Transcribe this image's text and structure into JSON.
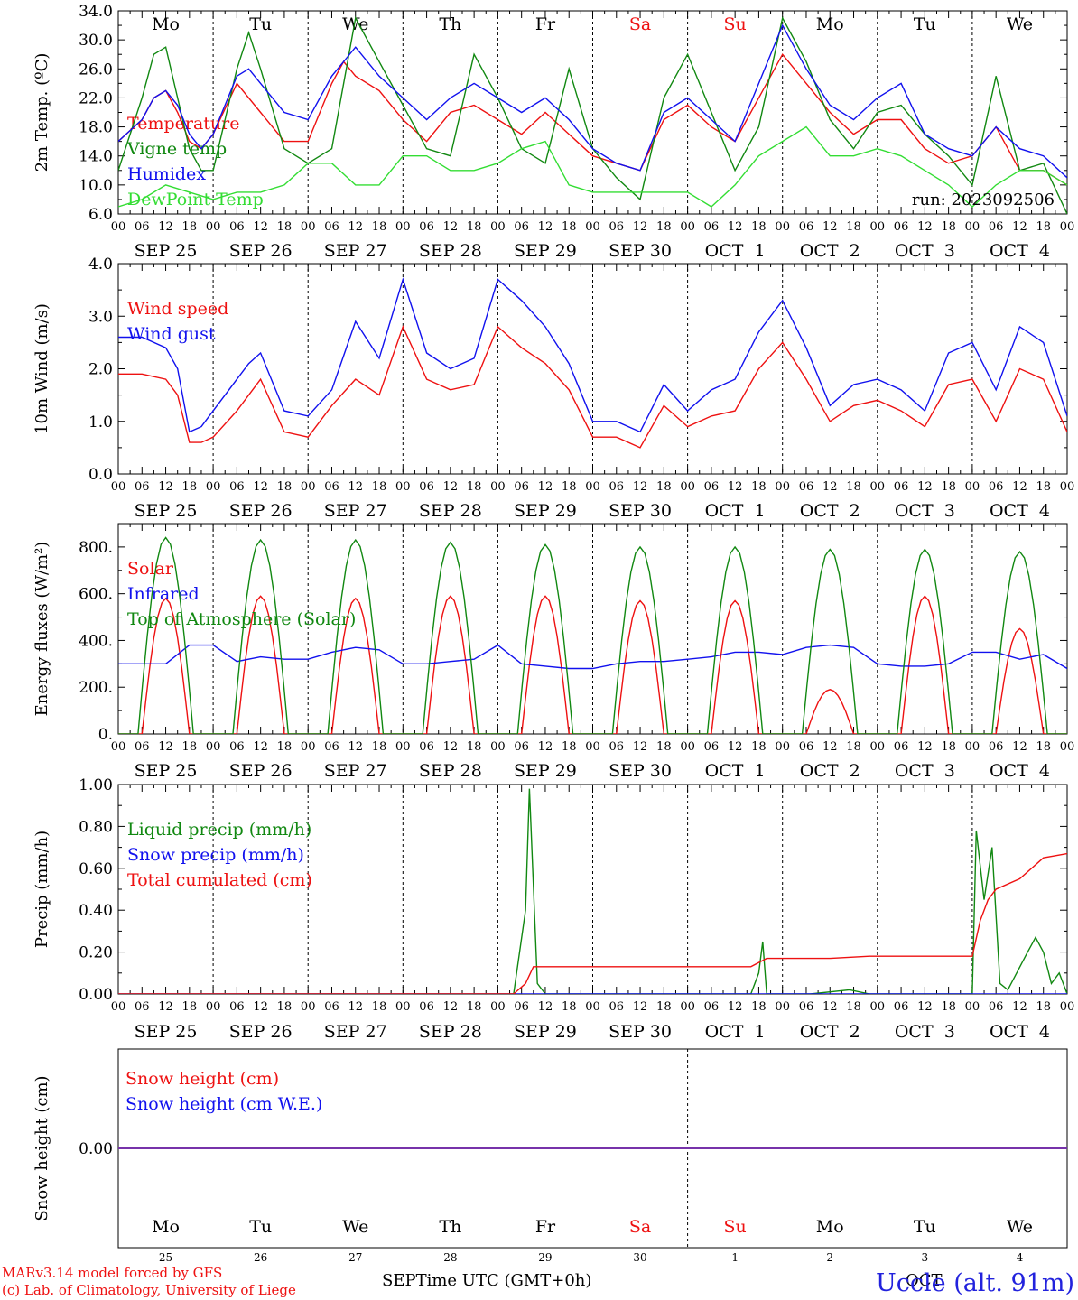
{
  "figure": {
    "run_label": "run: 2023092506",
    "xlabel": "Time UTC (GMT+0h)",
    "xlabel_month_overlay_left": "SEP",
    "xlabel_month_overlay_right": "OCT",
    "credit_line1": "MARv3.14 model forced by GFS",
    "credit_line2": "(c) Lab. of Climatology, University of Liege",
    "location": "Uccle (alt. 91m)"
  },
  "time_axis": {
    "hour_ticks": [
      "00",
      "06",
      "12",
      "18"
    ],
    "final_tick": "00",
    "date_labels": [
      "SEP 25",
      "SEP 26",
      "SEP 27",
      "SEP 28",
      "SEP 29",
      "SEP 30",
      "OCT  1",
      "OCT  2",
      "OCT  3",
      "OCT  4"
    ],
    "weekdays": [
      "Mo",
      "Tu",
      "We",
      "Th",
      "Fr",
      "Sa",
      "Su",
      "Mo",
      "Tu",
      "We"
    ],
    "weekend_indices": [
      5,
      6
    ],
    "day_numbers": [
      "25",
      "26",
      "27",
      "28",
      "29",
      "30",
      "1",
      "2",
      "3",
      "4"
    ]
  },
  "colors": {
    "red": "#ee1111",
    "blue": "#1111ee",
    "dark_green": "#118811",
    "light_green": "#33dd33",
    "purple": "#7733aa"
  },
  "chart_data": [
    {
      "type": "line",
      "ylabel": "2m Temp. (ºC)",
      "ylim": [
        6,
        34
      ],
      "yticks": [
        "6.0",
        "10.0",
        "14.0",
        "18.0",
        "22.0",
        "26.0",
        "30.0",
        "34.0"
      ],
      "x_unit": "hours since SEP 25 00 UTC",
      "series": [
        {
          "name": "Temperature",
          "color": "red",
          "x": [
            0,
            6,
            9,
            12,
            15,
            18,
            21,
            24,
            30,
            36,
            42,
            48,
            54,
            57,
            60,
            66,
            72,
            78,
            84,
            90,
            96,
            102,
            108,
            114,
            120,
            126,
            132,
            138,
            144,
            150,
            156,
            162,
            168,
            174,
            180,
            186,
            192,
            198,
            204,
            210,
            216,
            222,
            228,
            234,
            240
          ],
          "y": [
            16,
            19,
            22,
            23,
            20,
            16,
            15,
            17,
            24,
            20,
            16,
            16,
            24,
            27,
            25,
            23,
            19,
            16,
            20,
            21,
            19,
            17,
            20,
            17,
            14,
            13,
            12,
            19,
            21,
            18,
            16,
            22,
            28,
            24,
            20,
            17,
            19,
            19,
            15,
            13,
            14,
            18,
            12,
            12,
            10
          ]
        },
        {
          "name": "Vigne temp",
          "color": "dark_green",
          "x": [
            0,
            6,
            9,
            12,
            15,
            18,
            21,
            24,
            30,
            33,
            36,
            42,
            48,
            54,
            60,
            66,
            72,
            78,
            84,
            90,
            96,
            102,
            108,
            114,
            120,
            126,
            132,
            138,
            144,
            150,
            156,
            162,
            168,
            174,
            180,
            186,
            192,
            198,
            204,
            210,
            216,
            222,
            228,
            234,
            240
          ],
          "y": [
            12,
            22,
            28,
            29,
            22,
            15,
            12,
            12,
            26,
            31,
            26,
            15,
            13,
            15,
            33,
            27,
            21,
            15,
            14,
            28,
            22,
            15,
            13,
            26,
            15,
            11,
            8,
            22,
            28,
            20,
            12,
            18,
            33,
            27,
            19,
            15,
            20,
            21,
            17,
            14,
            10,
            25,
            12,
            13,
            6
          ]
        },
        {
          "name": "Humidex",
          "color": "blue",
          "x": [
            0,
            6,
            9,
            12,
            15,
            18,
            21,
            24,
            30,
            33,
            36,
            42,
            48,
            54,
            60,
            66,
            72,
            78,
            84,
            90,
            96,
            102,
            108,
            114,
            120,
            126,
            132,
            138,
            144,
            150,
            156,
            162,
            168,
            174,
            180,
            186,
            192,
            198,
            204,
            210,
            216,
            222,
            228,
            234,
            240
          ],
          "y": [
            16,
            19,
            22,
            23,
            21,
            17,
            15,
            17,
            25,
            26,
            24,
            20,
            19,
            25,
            29,
            25,
            22,
            19,
            22,
            24,
            22,
            20,
            22,
            19,
            15,
            13,
            12,
            20,
            22,
            19,
            16,
            24,
            32,
            26,
            21,
            19,
            22,
            24,
            17,
            15,
            14,
            18,
            15,
            14,
            11
          ]
        },
        {
          "name": "DewPoint Temp",
          "color": "light_green",
          "x": [
            0,
            6,
            12,
            18,
            24,
            30,
            36,
            42,
            48,
            54,
            60,
            66,
            72,
            78,
            84,
            90,
            96,
            102,
            108,
            114,
            120,
            126,
            132,
            138,
            144,
            150,
            156,
            162,
            168,
            174,
            180,
            186,
            192,
            198,
            204,
            210,
            216,
            222,
            228,
            234,
            240
          ],
          "y": [
            7,
            8,
            10,
            9,
            8,
            9,
            9,
            10,
            13,
            13,
            10,
            10,
            14,
            14,
            12,
            12,
            13,
            15,
            16,
            10,
            9,
            9,
            9,
            9,
            9,
            7,
            10,
            14,
            16,
            18,
            14,
            14,
            15,
            14,
            12,
            10,
            7,
            10,
            12,
            12,
            10
          ]
        }
      ]
    },
    {
      "type": "line",
      "ylabel": "10m Wind (m/s)",
      "ylim": [
        0,
        4
      ],
      "yticks": [
        "0.0",
        "1.0",
        "2.0",
        "3.0",
        "4.0"
      ],
      "series": [
        {
          "name": "Wind speed",
          "color": "red",
          "x": [
            0,
            6,
            12,
            15,
            18,
            21,
            24,
            30,
            33,
            36,
            42,
            48,
            54,
            60,
            66,
            72,
            78,
            84,
            90,
            96,
            102,
            108,
            114,
            120,
            126,
            132,
            138,
            144,
            150,
            156,
            162,
            168,
            174,
            180,
            186,
            192,
            198,
            204,
            210,
            216,
            222,
            228,
            234,
            240
          ],
          "y": [
            1.9,
            1.9,
            1.8,
            1.5,
            0.6,
            0.6,
            0.7,
            1.2,
            1.5,
            1.8,
            0.8,
            0.7,
            1.3,
            1.8,
            1.5,
            2.8,
            1.8,
            1.6,
            1.7,
            2.8,
            2.4,
            2.1,
            1.6,
            0.7,
            0.7,
            0.5,
            1.3,
            0.9,
            1.1,
            1.2,
            2.0,
            2.5,
            1.8,
            1.0,
            1.3,
            1.4,
            1.2,
            0.9,
            1.7,
            1.8,
            1.0,
            2.0,
            1.8,
            0.8
          ]
        },
        {
          "name": "Wind gust",
          "color": "blue",
          "x": [
            0,
            6,
            12,
            15,
            18,
            21,
            24,
            30,
            33,
            36,
            42,
            48,
            54,
            60,
            66,
            72,
            78,
            84,
            90,
            96,
            102,
            108,
            114,
            120,
            126,
            132,
            138,
            144,
            150,
            156,
            162,
            168,
            174,
            180,
            186,
            192,
            198,
            204,
            210,
            216,
            222,
            228,
            234,
            240
          ],
          "y": [
            2.6,
            2.6,
            2.4,
            2.0,
            0.8,
            0.9,
            1.2,
            1.8,
            2.1,
            2.3,
            1.2,
            1.1,
            1.6,
            2.9,
            2.2,
            3.7,
            2.3,
            2.0,
            2.2,
            3.7,
            3.3,
            2.8,
            2.1,
            1.0,
            1.0,
            0.8,
            1.7,
            1.2,
            1.6,
            1.8,
            2.7,
            3.3,
            2.4,
            1.3,
            1.7,
            1.8,
            1.6,
            1.2,
            2.3,
            2.5,
            1.6,
            2.8,
            2.5,
            1.1
          ]
        }
      ]
    },
    {
      "type": "line",
      "ylabel": "Energy fluxes (W/m²)",
      "ylim": [
        0,
        900
      ],
      "yticks": [
        "0.",
        "200.",
        "400.",
        "600.",
        "800."
      ],
      "series": [
        {
          "name": "Solar",
          "color": "red",
          "daily_peak": [
            580,
            590,
            580,
            590,
            590,
            570,
            570,
            190,
            590,
            450
          ],
          "daily_span_hours": [
            6,
            18
          ]
        },
        {
          "name": "Infrared",
          "color": "blue",
          "x": [
            0,
            12,
            18,
            24,
            30,
            36,
            42,
            48,
            54,
            60,
            66,
            72,
            78,
            84,
            90,
            96,
            102,
            108,
            114,
            120,
            126,
            132,
            138,
            144,
            150,
            156,
            162,
            168,
            174,
            180,
            186,
            192,
            198,
            204,
            210,
            216,
            222,
            228,
            234,
            240
          ],
          "y": [
            300,
            300,
            380,
            380,
            310,
            330,
            320,
            320,
            350,
            370,
            360,
            300,
            300,
            310,
            320,
            380,
            300,
            290,
            280,
            280,
            300,
            310,
            310,
            320,
            330,
            350,
            350,
            340,
            370,
            380,
            370,
            300,
            290,
            290,
            300,
            350,
            350,
            320,
            340,
            280
          ]
        },
        {
          "name": "Top of Atmosphere (Solar)",
          "color": "dark_green",
          "daily_peak": [
            840,
            830,
            830,
            820,
            810,
            800,
            800,
            790,
            790,
            780
          ],
          "daily_span_hours": [
            5,
            19
          ]
        }
      ]
    },
    {
      "type": "line",
      "ylabel": "Precip (mm/h)",
      "ylim": [
        0,
        1
      ],
      "yticks": [
        "0.00",
        "0.20",
        "0.40",
        "0.60",
        "0.80",
        "1.00"
      ],
      "series": [
        {
          "name": "Liquid precip (mm/h)",
          "color": "dark_green",
          "x": [
            0,
            100,
            103,
            104,
            106,
            108,
            160,
            162,
            163,
            164,
            175,
            185,
            190,
            200,
            216,
            217,
            219,
            221,
            223,
            225,
            230,
            232,
            234,
            236,
            238,
            240
          ],
          "y": [
            0,
            0,
            0.4,
            0.98,
            0.05,
            0,
            0,
            0.1,
            0.25,
            0,
            0,
            0.02,
            0,
            0,
            0,
            0.78,
            0.45,
            0.7,
            0.05,
            0.02,
            0.2,
            0.27,
            0.2,
            0.05,
            0.1,
            0
          ]
        },
        {
          "name": "Snow precip (mm/h)",
          "color": "blue",
          "x": [
            0,
            240
          ],
          "y": [
            0,
            0
          ]
        },
        {
          "name": "Total cumulated (cm)",
          "color": "red",
          "x": [
            0,
            100,
            103,
            105,
            160,
            164,
            180,
            190,
            216,
            218,
            220,
            222,
            228,
            234,
            240
          ],
          "y": [
            0,
            0,
            0.05,
            0.13,
            0.13,
            0.17,
            0.17,
            0.18,
            0.18,
            0.35,
            0.45,
            0.5,
            0.55,
            0.65,
            0.67
          ]
        }
      ]
    },
    {
      "type": "line",
      "ylabel": "Snow height (cm)",
      "ylim": [
        -1,
        1
      ],
      "yticks": [
        "0.00"
      ],
      "series": [
        {
          "name": "Snow height (cm)",
          "color": "red",
          "x": [
            0,
            240
          ],
          "y": [
            0,
            0
          ]
        },
        {
          "name": "Snow height (cm W.E.)",
          "color": "blue",
          "x": [
            0,
            240
          ],
          "y": [
            0,
            0
          ]
        }
      ]
    }
  ]
}
